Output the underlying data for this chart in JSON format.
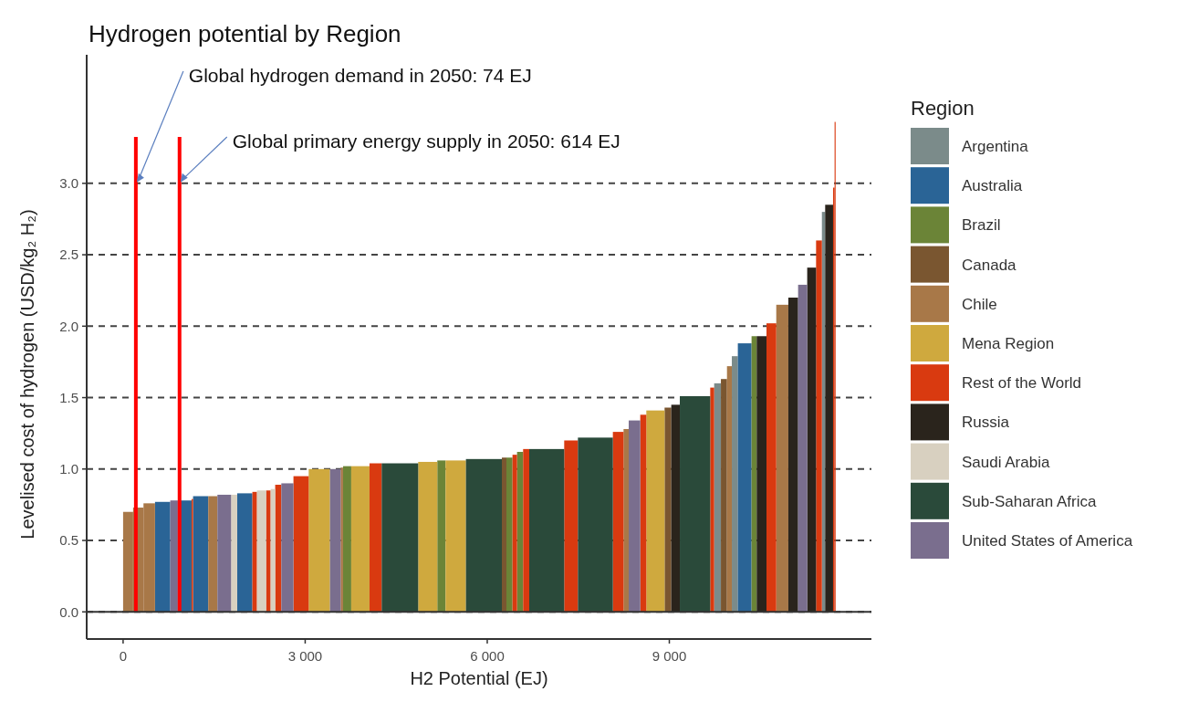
{
  "chart_data": {
    "type": "histogram",
    "title": "Hydrogen potential by Region",
    "xlabel": "H2 Potential (EJ)",
    "ylabel": "Levelised cost of hydrogen (USD/kg₂ H₂)",
    "legend_title": "Region",
    "legend": "right",
    "grid": "y",
    "annotations": [
      {
        "text": "Global hydrogen demand in 2050: 74 EJ",
        "x": 210,
        "y": 3.0
      },
      {
        "text": "Global primary energy supply in 2050: 614 EJ",
        "x": 930,
        "y": 3.0
      }
    ],
    "xlim": [
      -600,
      12330
    ],
    "ylim": [
      -0.19,
      3.9
    ],
    "xticks": [
      {
        "value": 0,
        "label": "0"
      },
      {
        "value": 3000,
        "label": "3 000"
      },
      {
        "value": 6000,
        "label": "6 000"
      },
      {
        "value": 9000,
        "label": "9 000"
      }
    ],
    "yticks": [
      {
        "value": 0,
        "label": "0.0"
      },
      {
        "value": 0.5,
        "label": "0.5"
      },
      {
        "value": 1,
        "label": "1.0"
      },
      {
        "value": 1.5,
        "label": "1.5"
      },
      {
        "value": 2,
        "label": "2.0"
      },
      {
        "value": 2.5,
        "label": "2.5"
      },
      {
        "value": 3,
        "label": "3.0"
      }
    ],
    "bins": [
      0,
      165,
      336,
      526,
      777,
      902,
      1128,
      1153,
      1403,
      1554,
      1779,
      1880,
      2130,
      2206,
      2356,
      2431,
      2506,
      2607,
      2807,
      3058,
      3409,
      3584,
      3624,
      3759,
      4060,
      4261,
      4862,
      5177,
      5313,
      5649,
      6241,
      6316,
      6416,
      6491,
      6591,
      6692,
      7268,
      7494,
      8070,
      8246,
      8331,
      8521,
      8621,
      8922,
      9032,
      9173,
      9674,
      9739,
      9850,
      9950,
      10030,
      10129,
      10355,
      10440,
      10601,
      10762,
      10961,
      11122,
      11272,
      11418,
      11514,
      11568,
      11698,
      11723,
      11740
    ],
    "series": [
      {
        "name": "Argentina",
        "color": "#7b8b8a",
        "values": [
          null,
          null,
          null,
          null,
          null,
          null,
          null,
          null,
          null,
          null,
          null,
          null,
          null,
          null,
          null,
          null,
          null,
          null,
          null,
          null,
          null,
          null,
          null,
          null,
          null,
          null,
          null,
          null,
          null,
          null,
          null,
          null,
          null,
          null,
          null,
          null,
          null,
          null,
          null,
          null,
          null,
          null,
          null,
          null,
          null,
          null,
          null,
          1.6,
          null,
          null,
          1.79,
          null,
          null,
          null,
          null,
          null,
          null,
          null,
          null,
          null,
          2.8,
          null,
          null,
          null
        ]
      },
      {
        "name": "Australia",
        "color": "#2a6496",
        "values": [
          null,
          null,
          null,
          0.77,
          null,
          0.78,
          null,
          0.81,
          null,
          null,
          null,
          0.83,
          null,
          null,
          null,
          null,
          null,
          null,
          null,
          null,
          null,
          null,
          null,
          null,
          null,
          null,
          null,
          null,
          null,
          null,
          null,
          null,
          null,
          null,
          null,
          null,
          null,
          null,
          null,
          null,
          null,
          null,
          null,
          null,
          null,
          null,
          null,
          null,
          null,
          null,
          null,
          1.88,
          null,
          null,
          null,
          null,
          null,
          null,
          null,
          null,
          null,
          null,
          null,
          null
        ]
      },
      {
        "name": "Brazil",
        "color": "#6b8437",
        "values": [
          null,
          null,
          null,
          null,
          null,
          null,
          null,
          null,
          null,
          null,
          null,
          null,
          null,
          null,
          null,
          null,
          null,
          null,
          null,
          null,
          null,
          null,
          1.02,
          null,
          null,
          null,
          null,
          1.06,
          null,
          null,
          null,
          1.08,
          null,
          1.12,
          null,
          null,
          null,
          null,
          null,
          null,
          null,
          null,
          null,
          null,
          null,
          null,
          null,
          null,
          null,
          null,
          null,
          null,
          1.93,
          null,
          null,
          null,
          null,
          null,
          null,
          null,
          null,
          null,
          null,
          null
        ]
      },
      {
        "name": "Canada",
        "color": "#7a5630",
        "values": [
          null,
          null,
          null,
          null,
          null,
          null,
          null,
          null,
          null,
          null,
          null,
          null,
          null,
          null,
          null,
          null,
          null,
          null,
          null,
          null,
          null,
          null,
          null,
          null,
          null,
          null,
          null,
          null,
          null,
          null,
          1.08,
          null,
          null,
          null,
          null,
          null,
          null,
          null,
          null,
          null,
          null,
          null,
          null,
          1.43,
          null,
          null,
          null,
          null,
          1.63,
          null,
          null,
          null,
          null,
          null,
          null,
          null,
          null,
          null,
          null,
          null,
          null,
          null,
          null,
          null
        ]
      },
      {
        "name": "Chile",
        "color": "#a87848",
        "values": [
          0.7,
          0.73,
          0.76,
          null,
          null,
          null,
          null,
          null,
          0.81,
          null,
          null,
          null,
          null,
          null,
          null,
          null,
          null,
          null,
          null,
          null,
          null,
          1.01,
          null,
          null,
          null,
          null,
          null,
          null,
          null,
          null,
          null,
          null,
          null,
          null,
          null,
          null,
          null,
          null,
          null,
          1.28,
          null,
          null,
          null,
          null,
          null,
          null,
          null,
          null,
          null,
          1.72,
          null,
          null,
          null,
          null,
          null,
          2.15,
          null,
          null,
          null,
          null,
          null,
          null,
          null,
          null
        ]
      },
      {
        "name": "Mena Region",
        "color": "#cfa93e",
        "values": [
          null,
          null,
          null,
          null,
          null,
          null,
          null,
          null,
          null,
          null,
          null,
          null,
          null,
          null,
          null,
          null,
          null,
          null,
          null,
          1.0,
          null,
          null,
          null,
          1.02,
          null,
          null,
          1.05,
          null,
          1.06,
          null,
          null,
          null,
          null,
          null,
          null,
          null,
          null,
          null,
          null,
          null,
          null,
          null,
          1.41,
          null,
          null,
          null,
          null,
          null,
          null,
          null,
          null,
          null,
          null,
          null,
          null,
          null,
          null,
          null,
          null,
          null,
          null,
          null,
          null,
          null
        ]
      },
      {
        "name": "Rest of the World",
        "color": "#d93a10",
        "values": [
          null,
          null,
          null,
          null,
          null,
          null,
          0.79,
          null,
          null,
          null,
          null,
          null,
          0.84,
          null,
          0.85,
          null,
          0.89,
          null,
          0.95,
          null,
          null,
          null,
          null,
          null,
          1.04,
          null,
          null,
          null,
          null,
          null,
          null,
          null,
          1.1,
          null,
          1.14,
          null,
          1.2,
          null,
          1.26,
          null,
          null,
          1.38,
          null,
          null,
          null,
          null,
          1.57,
          null,
          null,
          null,
          null,
          null,
          null,
          null,
          2.02,
          null,
          null,
          null,
          null,
          2.6,
          null,
          null,
          2.97,
          3.43
        ]
      },
      {
        "name": "Russia",
        "color": "#2a241c",
        "values": [
          null,
          null,
          null,
          null,
          null,
          null,
          null,
          null,
          null,
          null,
          null,
          null,
          null,
          null,
          null,
          null,
          null,
          null,
          null,
          null,
          null,
          null,
          null,
          null,
          null,
          null,
          null,
          null,
          null,
          null,
          null,
          null,
          null,
          null,
          null,
          null,
          null,
          null,
          null,
          null,
          null,
          null,
          null,
          null,
          1.45,
          null,
          null,
          null,
          null,
          null,
          null,
          null,
          null,
          1.93,
          null,
          null,
          2.2,
          null,
          2.41,
          null,
          null,
          2.85,
          null,
          null
        ]
      },
      {
        "name": "Saudi Arabia",
        "color": "#d8d0c0",
        "values": [
          null,
          null,
          null,
          null,
          null,
          null,
          null,
          null,
          null,
          null,
          0.82,
          null,
          null,
          0.85,
          null,
          0.86,
          null,
          null,
          null,
          null,
          null,
          null,
          null,
          null,
          null,
          null,
          null,
          null,
          null,
          null,
          null,
          null,
          null,
          null,
          null,
          null,
          null,
          null,
          null,
          null,
          null,
          null,
          null,
          null,
          null,
          null,
          null,
          null,
          null,
          null,
          null,
          null,
          null,
          null,
          null,
          null,
          null,
          null,
          null,
          null,
          null,
          null,
          null,
          null
        ]
      },
      {
        "name": "Sub-Saharan Africa",
        "color": "#2a4a3a",
        "values": [
          null,
          null,
          null,
          null,
          null,
          null,
          null,
          null,
          null,
          null,
          null,
          null,
          null,
          null,
          null,
          null,
          null,
          null,
          null,
          null,
          null,
          null,
          null,
          null,
          null,
          1.04,
          null,
          null,
          null,
          1.07,
          null,
          null,
          null,
          null,
          null,
          1.14,
          null,
          1.22,
          null,
          null,
          null,
          null,
          null,
          null,
          null,
          1.51,
          null,
          null,
          null,
          null,
          null,
          null,
          null,
          null,
          null,
          null,
          null,
          null,
          null,
          null,
          null,
          null,
          null,
          null
        ]
      },
      {
        "name": "United States of America",
        "color": "#7a6e8e",
        "values": [
          null,
          null,
          null,
          null,
          0.78,
          null,
          null,
          null,
          null,
          0.82,
          null,
          null,
          null,
          null,
          null,
          null,
          null,
          0.9,
          null,
          null,
          1.0,
          null,
          null,
          null,
          null,
          null,
          null,
          null,
          null,
          null,
          null,
          null,
          null,
          null,
          null,
          null,
          null,
          null,
          null,
          null,
          1.34,
          null,
          null,
          null,
          null,
          null,
          null,
          null,
          null,
          null,
          null,
          null,
          null,
          null,
          null,
          null,
          null,
          2.29,
          null,
          null,
          null,
          null,
          null,
          null
        ]
      }
    ],
    "ref_lines": [
      {
        "axis": "x",
        "value": 210,
        "color": "#ff0000"
      },
      {
        "axis": "x",
        "value": 930,
        "color": "#ff0000"
      },
      {
        "axis": "y",
        "value": 0,
        "color": "#333333",
        "line_style": "solid"
      }
    ]
  }
}
